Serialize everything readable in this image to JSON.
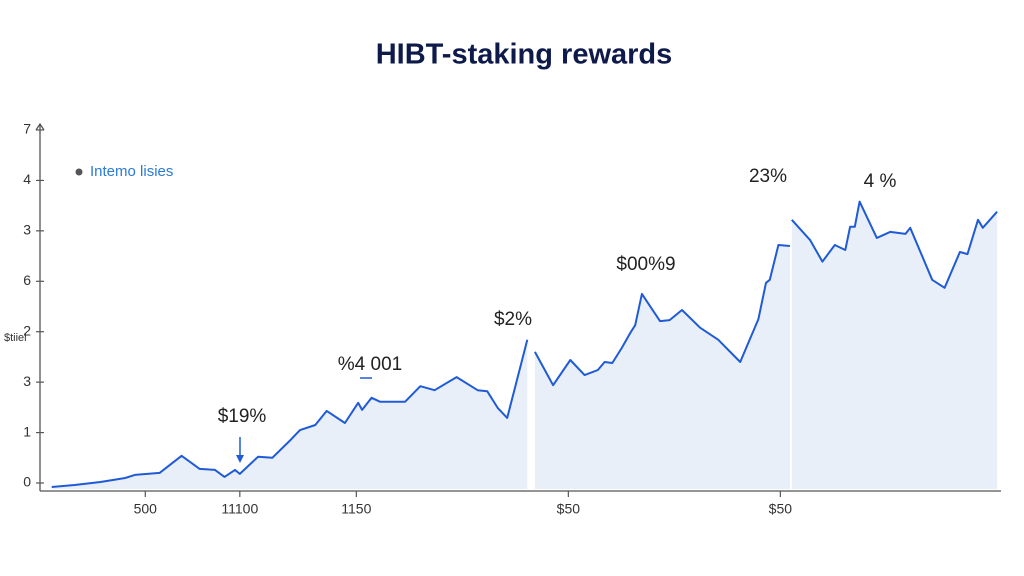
{
  "chart_data": {
    "type": "line",
    "title": "HIBT-staking rewards",
    "y_label": "$tiiel",
    "annotations": [
      "23%",
      "4 %",
      "$00%9",
      "$2%",
      "%4 001",
      "$19%"
    ],
    "series": [
      {
        "name": "Intemo lisies",
        "color": "#1f5bd6",
        "x": [
          0.7,
          3.1,
          5.8,
          8.4,
          9.4,
          12.0,
          14.3,
          16.2,
          17.8,
          18.8,
          19.9,
          20.4,
          22.3,
          23.8,
          25.7,
          26.7,
          28.3,
          29.5,
          31.4,
          32.8,
          33.2,
          34.2,
          35.1,
          37.7,
          39.3,
          40.8,
          43.1,
          45.3,
          46.3,
          47.4,
          48.4,
          50.5,
          50.9,
          51.3,
          53.2,
          55.0,
          56.5,
          57.9,
          58.6,
          59.4,
          60.4,
          61.3,
          61.8,
          62.5,
          64.4,
          65.4,
          66.7,
          68.6,
          70.5,
          72.8,
          74.7,
          75.5,
          75.9,
          76.8,
          78.0,
          78.1,
          78.2,
          80.1,
          81.4,
          82.7,
          83.8,
          84.3,
          84.8,
          85.3,
          87.1,
          88.5,
          90.1,
          90.6,
          92.9,
          94.2,
          95.8,
          96.6,
          97.7,
          98.2,
          99.7
        ],
        "values": [
          -0.08,
          -0.04,
          0.02,
          0.1,
          0.16,
          0.2,
          0.54,
          0.28,
          0.26,
          0.12,
          0.26,
          0.18,
          0.52,
          0.5,
          0.85,
          1.05,
          1.15,
          1.43,
          1.19,
          1.59,
          1.45,
          1.69,
          1.61,
          1.61,
          1.92,
          1.84,
          2.1,
          1.84,
          1.82,
          1.49,
          1.29,
          2.84,
          null,
          2.6,
          1.94,
          2.44,
          2.14,
          2.24,
          2.4,
          2.38,
          2.68,
          2.98,
          3.13,
          3.75,
          3.21,
          3.23,
          3.43,
          3.08,
          2.84,
          2.4,
          3.25,
          3.97,
          4.03,
          4.72,
          4.7,
          null,
          5.22,
          4.82,
          4.39,
          4.72,
          4.62,
          5.08,
          5.08,
          5.58,
          4.86,
          4.98,
          4.94,
          5.06,
          4.03,
          3.87,
          4.58,
          4.54,
          5.22,
          5.06,
          5.38
        ]
      }
    ],
    "xlim": [
      0,
      100
    ],
    "xticks": [
      {
        "value": 10.5,
        "label": "500"
      },
      {
        "value": 20.4,
        "label": "11100"
      },
      {
        "value": 32.6,
        "label": "1150"
      },
      {
        "value": 54.8,
        "label": "$50"
      },
      {
        "value": 77,
        "label": "$50"
      }
    ],
    "ylim": [
      0,
      7
    ],
    "yticks": [
      0,
      1,
      {
        "value": 2,
        "label": "3"
      },
      {
        "value": 3,
        "label": "2"
      },
      {
        "value": 4,
        "label": "6"
      },
      {
        "value": 5,
        "label": "3"
      },
      {
        "value": 6,
        "label": "4"
      },
      7
    ],
    "area_color": "#e9eff9"
  }
}
